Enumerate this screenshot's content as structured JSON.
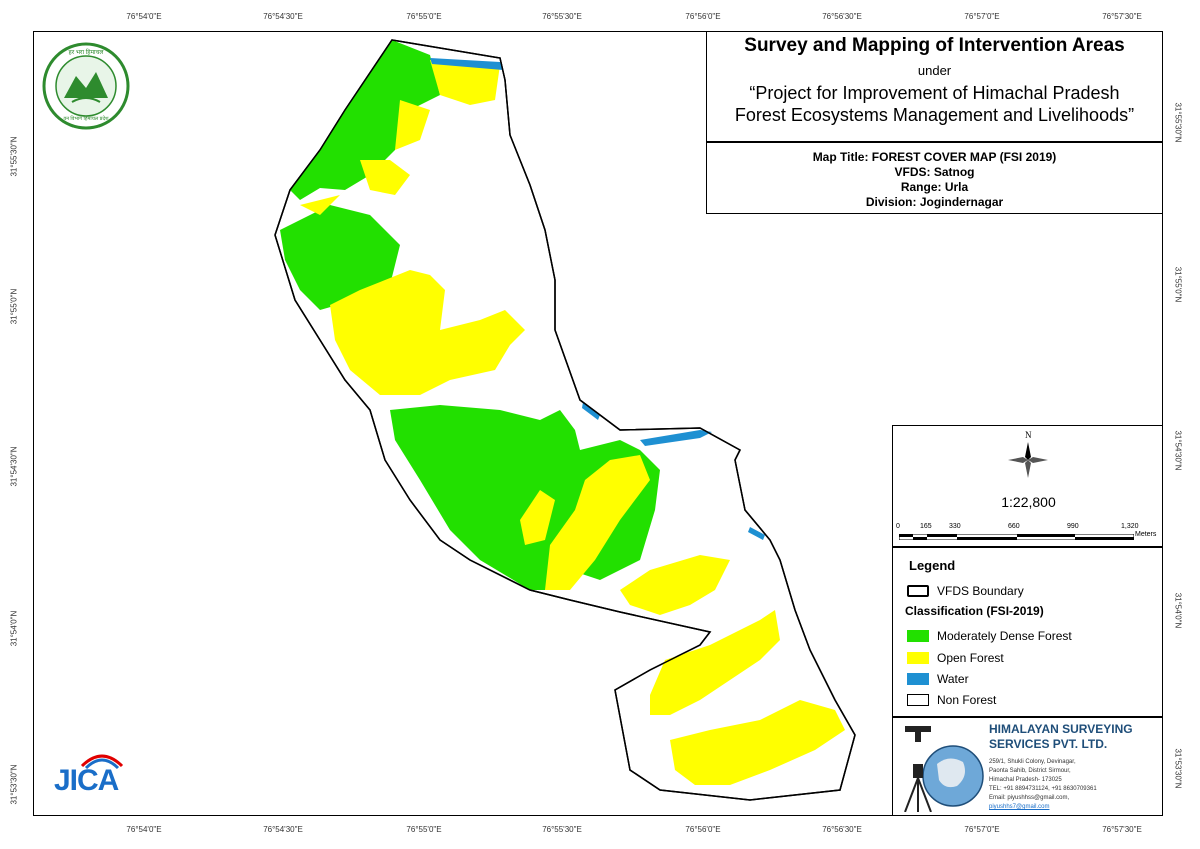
{
  "header": {
    "title": "Survey and Mapping of Intervention Areas",
    "under": "under",
    "project_line1": "“Project for Improvement of Himachal Pradesh",
    "project_line2": "Forest Ecosystems Management and Livelihoods”"
  },
  "info": {
    "map_title": "Map Title: FOREST COVER MAP (FSI 2019)",
    "vfds": "VFDS: Satnog",
    "range": "Range: Urla",
    "division": "Division: Jogindernagar"
  },
  "grid": {
    "longitudes": [
      "76°54'0\"E",
      "76°54'30\"E",
      "76°55'0\"E",
      "76°55'30\"E",
      "76°56'0\"E",
      "76°56'30\"E",
      "76°57'0\"E",
      "76°57'30\"E"
    ],
    "latitudes": [
      "31°55'30\"N",
      "31°55'0\"N",
      "31°54'30\"N",
      "31°54'0\"N",
      "31°53'30\"N"
    ]
  },
  "north_arrow": {
    "label": "N",
    "icon": "north-arrow-icon"
  },
  "scale": {
    "ratio": "1:22,800",
    "bar_labels": [
      "0",
      "165",
      "330",
      "660",
      "990",
      "1,320"
    ],
    "unit": "Meters"
  },
  "legend": {
    "title": "Legend",
    "boundary_label": "VFDS Boundary",
    "classification_title": "Classification (FSI-2019)",
    "items": [
      {
        "label": "Moderately Dense Forest",
        "color": "#22e000"
      },
      {
        "label": "Open Forest",
        "color": "#ffff00"
      },
      {
        "label": "Water",
        "color": "#1e90d2"
      },
      {
        "label": "Non Forest",
        "color": "#ffffff"
      }
    ]
  },
  "company": {
    "name_line1": "HIMALAYAN SURVEYING",
    "name_line2": "SERVICES PVT. LTD.",
    "address": [
      "259/1, Shukli Colony, Devinagar,",
      "Paonta Sahib, District Sirmour,",
      "Himachal Pradesh- 173025",
      "TEL: +91 8894731124, +91 8630709361",
      "Email: piyushhss@gmail.com,",
      "piyushhs7@gmail.com"
    ],
    "color": "#1f4e79"
  },
  "logos": {
    "hp_forest": "hp-forest-dept-logo",
    "hp_forest_text_top": "हर भरा हिमाचल",
    "hp_forest_text_bottom": "वन विभाग हिमाचल प्रदेश",
    "jica": "JICA"
  }
}
